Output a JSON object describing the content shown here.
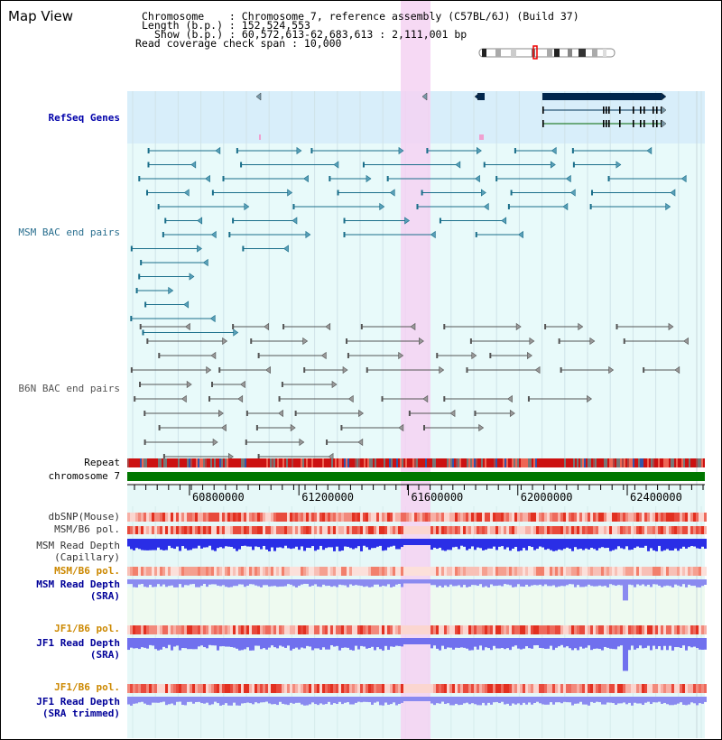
{
  "view_title": "Map View",
  "info": {
    "chromosome_line": "Chromosome    : Chromosome 7, reference assembly (C57BL/6J) (Build 37)",
    "length_line": "Length (b.p.) : 152,524,553",
    "show_line": "Show (b.p.) : 60,572,613-62,683,613 : 2,111,001 bp",
    "coverage_line": "Read coverage check span : 10,000"
  },
  "tracks": {
    "refseq": "RefSeq Genes",
    "msm_bac": "MSM BAC end pairs",
    "b6n_bac": "B6N BAC end pairs",
    "repeat": "Repeat",
    "chromosome": "chromosome 7",
    "dbsnp": "dbSNP(Mouse)",
    "msm_b6_pol_1": "MSM/B6 pol.",
    "msm_depth_cap_1": "MSM Read Depth",
    "msm_depth_cap_2": "(Capillary)",
    "msm_b6_pol_2": "MSM/B6 pol.",
    "msm_depth_sra_1": "MSM Read Depth",
    "msm_depth_sra_2": "(SRA)",
    "jf1_b6_pol_1": "JF1/B6 pol.",
    "jf1_depth_sra_1": "JF1 Read Depth",
    "jf1_depth_sra_2": "(SRA)",
    "jf1_b6_pol_2": "JF1/B6 pol.",
    "jf1_depth_trim_1": "JF1 Read Depth",
    "jf1_depth_trim_2": "(SRA trimmed)"
  },
  "axis": {
    "range": [
      60572613,
      62683613
    ],
    "ticks": [
      "60800000",
      "61200000",
      "61600000",
      "62000000",
      "62400000"
    ]
  },
  "colors": {
    "refseq_bg": "#d8eefa",
    "bac_bg": "#e8fafa",
    "highlight": "#f4d2f2",
    "msm_line": "#1a6e8a",
    "b6n_line": "#555555",
    "chromosome": "#007700",
    "gene": "#00264d"
  }
}
